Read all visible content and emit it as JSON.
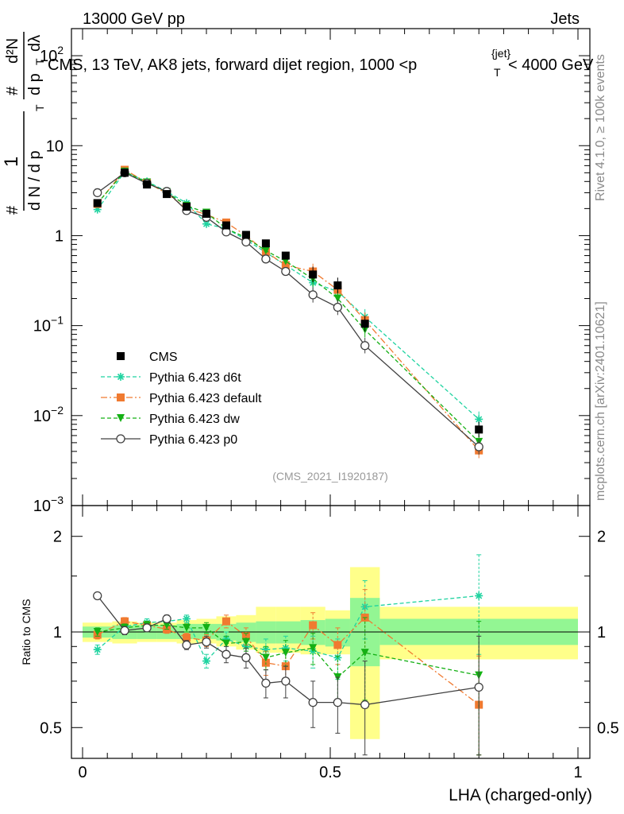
{
  "header": {
    "left": "13000 GeV pp",
    "right": "Jets"
  },
  "side": {
    "rivet": "Rivet 4.1.0, ≥ 100k events",
    "mcplots": "mcplots.cern.ch [arXiv:2401.10621]"
  },
  "colors": {
    "cms": "#000000",
    "d6t": "#1fd3a0",
    "default": "#f07a30",
    "dw": "#14b014",
    "p0": "#404040",
    "band_inner": "#93f693",
    "band_outer": "#ffff8a"
  },
  "chart_data": {
    "type": "scatter",
    "title": "CMS, 13 TeV, AK8 jets, forward dijet region, 1000 <p_T^{jet}< 4000 GeV",
    "analysis_tag": "(CMS_2021_I1920187)",
    "xlabel": "LHA (charged-only)",
    "ylabel": "1/dN/dp_T  d²N/dp_T dλ",
    "ylabel_parts": {
      "one": "1",
      "num": "d²N",
      "den_a": "d N / d p",
      "den_b": "d p",
      "dlam": "dλ",
      "sub": "T",
      "hash": "#"
    },
    "title_parts": {
      "main": "CMS, 13 TeV, AK8 jets, forward dijet region, 1000 <p",
      "sub": "T",
      "sup": "{jet}",
      "tail": "< 4000 GeV"
    },
    "xlim": [
      0,
      1
    ],
    "ylim": [
      0.001,
      200
    ],
    "yscale": "log",
    "x_ticks": [
      "0",
      "0.5",
      "1"
    ],
    "y_ticks": [
      {
        "v": 0.001,
        "base": "10",
        "exp": "−3"
      },
      {
        "v": 0.01,
        "base": "10",
        "exp": "−2"
      },
      {
        "v": 0.1,
        "base": "10",
        "exp": "−1"
      },
      {
        "v": 1,
        "base": "1",
        "exp": ""
      },
      {
        "v": 10,
        "base": "10",
        "exp": ""
      },
      {
        "v": 100,
        "base": "10",
        "exp": "2"
      }
    ],
    "x": [
      0.03,
      0.085,
      0.13,
      0.17,
      0.21,
      0.25,
      0.29,
      0.33,
      0.37,
      0.41,
      0.465,
      0.515,
      0.57,
      0.8
    ],
    "bin_edges": [
      0.0,
      0.06,
      0.11,
      0.15,
      0.19,
      0.23,
      0.27,
      0.31,
      0.35,
      0.39,
      0.44,
      0.49,
      0.54,
      0.6,
      1.0
    ],
    "series": [
      {
        "name": "CMS",
        "key": "cms",
        "marker": "square",
        "values": [
          2.3,
          5.0,
          3.7,
          2.9,
          2.1,
          1.75,
          1.3,
          1.02,
          0.82,
          0.6,
          0.37,
          0.28,
          0.105,
          0.007
        ]
      },
      {
        "name": "Pythia 6.423 d6t",
        "key": "d6t",
        "marker": "star",
        "line": "dashed",
        "values": [
          1.95,
          5.1,
          4.0,
          3.1,
          2.3,
          1.35,
          1.2,
          0.9,
          0.65,
          0.47,
          0.3,
          0.24,
          0.125,
          0.0091
        ]
      },
      {
        "name": "Pythia 6.423 default",
        "key": "default",
        "marker": "square",
        "line": "dashdot",
        "values": [
          2.25,
          5.4,
          3.9,
          2.95,
          2.0,
          1.72,
          1.4,
          1.0,
          0.66,
          0.47,
          0.4,
          0.25,
          0.115,
          0.0041
        ]
      },
      {
        "name": "Pythia 6.423 dw",
        "key": "dw",
        "marker": "triangle-down",
        "line": "dashed",
        "values": [
          2.3,
          5.15,
          3.9,
          3.05,
          2.15,
          1.8,
          1.2,
          0.95,
          0.68,
          0.52,
          0.33,
          0.2,
          0.09,
          0.0051
        ]
      },
      {
        "name": "Pythia 6.423 p0",
        "key": "p0",
        "marker": "circle-open",
        "line": "solid",
        "values": [
          3.0,
          5.0,
          3.8,
          3.1,
          1.9,
          1.6,
          1.1,
          0.85,
          0.55,
          0.4,
          0.22,
          0.16,
          0.06,
          0.0045
        ]
      }
    ],
    "ratio": {
      "ylabel": "Ratio to CMS",
      "ylim": [
        0.4,
        2.5
      ],
      "yscale": "log",
      "y_ticks": [
        {
          "v": 0.5,
          "label": "0.5"
        },
        {
          "v": 1,
          "label": "1"
        },
        {
          "v": 2,
          "label": "2"
        }
      ],
      "band_inner": [
        [
          0.96,
          1.04
        ],
        [
          0.95,
          1.05
        ],
        [
          0.95,
          1.05
        ],
        [
          0.95,
          1.05
        ],
        [
          0.95,
          1.06
        ],
        [
          0.95,
          1.06
        ],
        [
          0.94,
          1.06
        ],
        [
          0.93,
          1.07
        ],
        [
          0.92,
          1.08
        ],
        [
          0.92,
          1.08
        ],
        [
          0.91,
          1.09
        ],
        [
          0.9,
          1.1
        ],
        [
          0.78,
          1.28
        ],
        [
          0.91,
          1.1
        ]
      ],
      "band_outer": [
        [
          0.93,
          1.07
        ],
        [
          0.92,
          1.08
        ],
        [
          0.93,
          1.07
        ],
        [
          0.93,
          1.07
        ],
        [
          0.92,
          1.09
        ],
        [
          0.92,
          1.1
        ],
        [
          0.9,
          1.12
        ],
        [
          0.88,
          1.13
        ],
        [
          0.86,
          1.2
        ],
        [
          0.86,
          1.2
        ],
        [
          0.85,
          1.2
        ],
        [
          0.85,
          1.17
        ],
        [
          0.46,
          1.6
        ],
        [
          0.82,
          1.2
        ]
      ],
      "series": [
        {
          "key": "d6t",
          "values": [
            0.88,
            1.04,
            1.07,
            1.08,
            1.1,
            0.81,
            0.95,
            0.9,
            0.88,
            0.89,
            0.87,
            0.83,
            1.2,
            1.3
          ],
          "err": [
            0.03,
            0.03,
            0.03,
            0.03,
            0.03,
            0.04,
            0.05,
            0.06,
            0.07,
            0.08,
            0.1,
            0.12,
            0.25,
            0.45
          ]
        },
        {
          "key": "default",
          "values": [
            0.98,
            1.08,
            1.05,
            1.02,
            0.96,
            0.94,
            1.08,
            0.97,
            0.8,
            0.78,
            1.05,
            0.91,
            1.11,
            0.59
          ],
          "err": [
            0.03,
            0.03,
            0.03,
            0.03,
            0.03,
            0.04,
            0.05,
            0.06,
            0.07,
            0.08,
            0.1,
            0.12,
            0.25,
            0.25
          ]
        },
        {
          "key": "dw",
          "values": [
            1.0,
            1.03,
            1.05,
            1.05,
            1.03,
            1.03,
            0.92,
            0.93,
            0.83,
            0.86,
            0.89,
            0.72,
            0.86,
            0.73
          ],
          "err": [
            0.03,
            0.03,
            0.03,
            0.03,
            0.03,
            0.04,
            0.05,
            0.06,
            0.07,
            0.08,
            0.1,
            0.12,
            0.25,
            0.35
          ]
        },
        {
          "key": "p0",
          "values": [
            1.3,
            1.01,
            1.03,
            1.1,
            0.91,
            0.93,
            0.85,
            0.83,
            0.69,
            0.7,
            0.6,
            0.6,
            0.59,
            0.67
          ],
          "err": [
            0.03,
            0.03,
            0.03,
            0.03,
            0.03,
            0.04,
            0.05,
            0.06,
            0.07,
            0.08,
            0.1,
            0.12,
            0.22,
            0.3
          ]
        }
      ]
    }
  }
}
